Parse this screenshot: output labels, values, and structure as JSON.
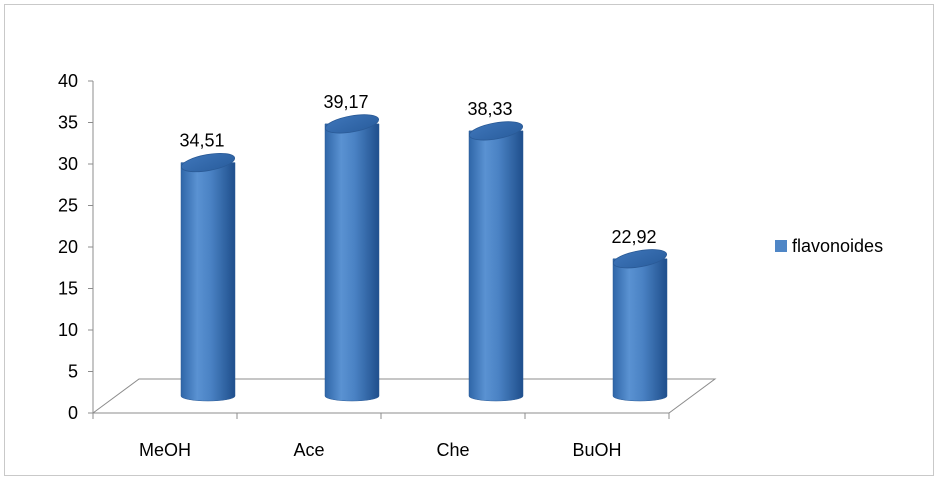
{
  "chart_data": {
    "type": "bar",
    "style": "3d-cylinder",
    "categories": [
      "MeOH",
      "Ace",
      "Che",
      "BuOH"
    ],
    "series": [
      {
        "name": "flavonoides",
        "values": [
          34.51,
          39.17,
          38.33,
          22.92
        ],
        "value_labels": [
          "34,51",
          "39,17",
          "38,33",
          "22,92"
        ],
        "color": "#4f86c6"
      }
    ],
    "title": "",
    "xlabel": "",
    "ylabel": "",
    "ylim": [
      0,
      40
    ],
    "yticks": [
      "0",
      "5",
      "10",
      "15",
      "20",
      "25",
      "30",
      "35",
      "40"
    ],
    "grid": false,
    "legend_position": "right"
  }
}
